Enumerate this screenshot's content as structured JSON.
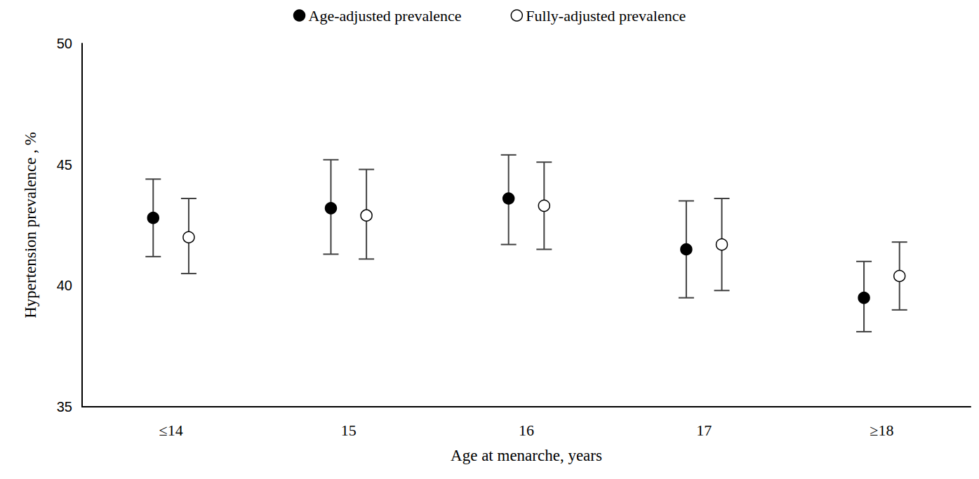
{
  "chart_data": {
    "type": "scatter",
    "x_label": "Age at menarche, years",
    "y_label": "Hypertension prevalence , %",
    "categories": [
      "≤14",
      "15",
      "16",
      "17",
      "≥18"
    ],
    "series": [
      {
        "name": "Age-adjusted prevalence",
        "color": "#000000",
        "marker": "filled",
        "values": [
          42.8,
          43.2,
          43.6,
          41.5,
          39.5
        ],
        "lower": [
          41.2,
          41.3,
          41.7,
          39.5,
          38.1
        ],
        "upper": [
          44.4,
          45.2,
          45.4,
          43.5,
          41.0
        ]
      },
      {
        "name": "Fully-adjusted prevalence",
        "color": "#000000",
        "marker": "open",
        "values": [
          42.0,
          42.9,
          43.3,
          41.7,
          40.4
        ],
        "lower": [
          40.5,
          41.1,
          41.5,
          39.8,
          39.0
        ],
        "upper": [
          43.6,
          44.8,
          45.1,
          43.6,
          41.8
        ]
      }
    ],
    "ylim": [
      35,
      50
    ],
    "yticks": [
      35,
      40,
      45,
      50
    ],
    "grid": false,
    "legend": "top"
  }
}
